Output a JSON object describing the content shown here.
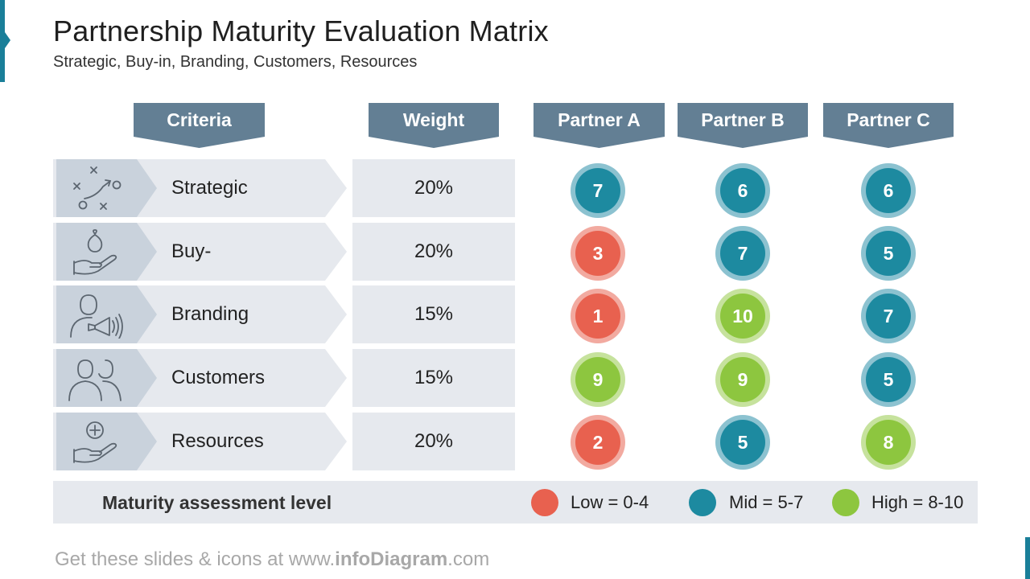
{
  "title": "Partnership Maturity Evaluation Matrix",
  "subtitle": "Strategic, Buy-in, Branding, Customers, Resources",
  "headers": {
    "criteria": "Criteria",
    "weight": "Weight",
    "partner_a": "Partner A",
    "partner_b": "Partner B",
    "partner_c": "Partner C"
  },
  "rows": [
    {
      "criterion": "Strategic",
      "icon": "strategy-play-icon",
      "weight": "20%",
      "scores": [
        "7",
        "6",
        "6"
      ],
      "levels": [
        "mid",
        "mid",
        "mid"
      ]
    },
    {
      "criterion": "Buy-in",
      "icon": "money-bag-hand-icon",
      "weight": "20%",
      "scores": [
        "3",
        "7",
        "5"
      ],
      "levels": [
        "low",
        "mid",
        "mid"
      ]
    },
    {
      "criterion": "Branding",
      "icon": "person-megaphone-icon",
      "weight": "15%",
      "scores": [
        "1",
        "10",
        "7"
      ],
      "levels": [
        "low",
        "high",
        "mid"
      ]
    },
    {
      "criterion": "Customers",
      "icon": "two-people-icon",
      "weight": "15%",
      "scores": [
        "9",
        "9",
        "5"
      ],
      "levels": [
        "high",
        "high",
        "mid"
      ]
    },
    {
      "criterion": "Resources",
      "icon": "plus-hand-icon",
      "weight": "20%",
      "scores": [
        "2",
        "5",
        "8"
      ],
      "levels": [
        "low",
        "mid",
        "high"
      ]
    }
  ],
  "legend": {
    "title": "Maturity assessment level",
    "low": "Low = 0-4",
    "mid": "Mid = 5-7",
    "high": "High = 8-10"
  },
  "colors": {
    "low": "#e8614f",
    "mid": "#1d8aa0",
    "high": "#8dc63f",
    "header": "#637f94",
    "accent": "#1a7f99"
  },
  "footer": {
    "prefix": "Get these slides & icons at www.",
    "brand": "infoDiagram",
    "suffix": ".com"
  }
}
